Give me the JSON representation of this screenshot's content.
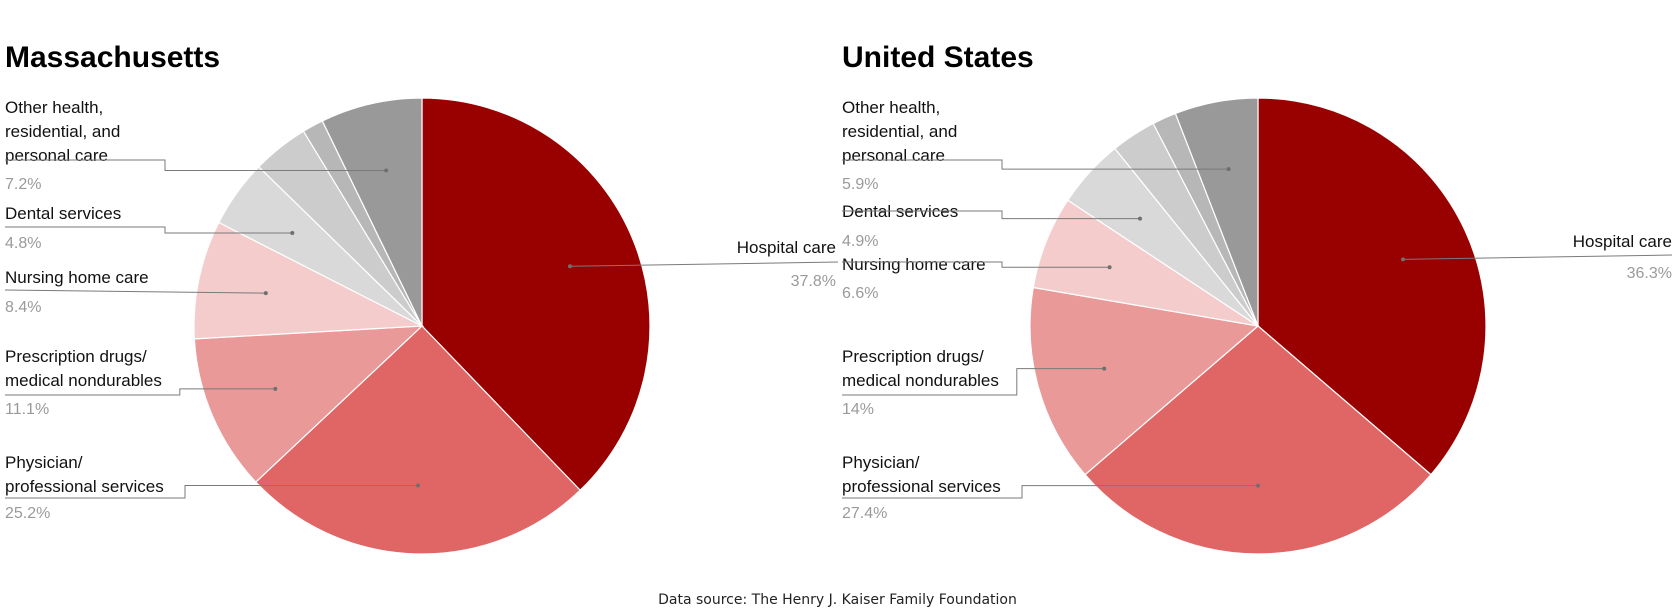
{
  "chart_data": [
    {
      "type": "pie",
      "title": "Massachusetts",
      "slices": [
        {
          "label": "Hospital care",
          "value": 37.8,
          "display": "37.8%",
          "color": "#990000"
        },
        {
          "label": "Physician/\nprofessional services",
          "value": 25.2,
          "display": "25.2%",
          "color": "#e06666"
        },
        {
          "label": "Prescription drugs/\nmedical nondurables",
          "value": 11.1,
          "display": "11.1%",
          "color": "#ea9999"
        },
        {
          "label": "Nursing home care",
          "value": 8.4,
          "display": "8.4%",
          "color": "#f4cccc"
        },
        {
          "label": "Dental services",
          "value": 4.8,
          "display": "4.8%",
          "color": "#d9d9d9"
        },
        {
          "label": "",
          "value": 4.0,
          "display": "",
          "color": "#cccccc"
        },
        {
          "label": "",
          "value": 1.5,
          "display": "",
          "color": "#b7b7b7"
        },
        {
          "label": "Other health,\nresidential, and\npersonal care",
          "value": 7.2,
          "display": "7.2%",
          "color": "#999999"
        }
      ]
    },
    {
      "type": "pie",
      "title": "United States",
      "slices": [
        {
          "label": "Hospital care",
          "value": 36.3,
          "display": "36.3%",
          "color": "#990000"
        },
        {
          "label": "Physician/\nprofessional services",
          "value": 27.4,
          "display": "27.4%",
          "color": "#e06666"
        },
        {
          "label": "Prescription drugs/\nmedical nondurables",
          "value": 14,
          "display": "14%",
          "color": "#ea9999"
        },
        {
          "label": "Nursing home care",
          "value": 6.6,
          "display": "6.6%",
          "color": "#f4cccc"
        },
        {
          "label": "Dental services",
          "value": 4.9,
          "display": "4.9%",
          "color": "#d9d9d9"
        },
        {
          "label": "",
          "value": 3.2,
          "display": "",
          "color": "#cccccc"
        },
        {
          "label": "",
          "value": 1.7,
          "display": "",
          "color": "#b7b7b7"
        },
        {
          "label": "Other health,\nresidential, and\npersonal care",
          "value": 5.9,
          "display": "5.9%",
          "color": "#999999"
        }
      ]
    }
  ],
  "source": "Data source: The Henry J. Kaiser Family Foundation"
}
